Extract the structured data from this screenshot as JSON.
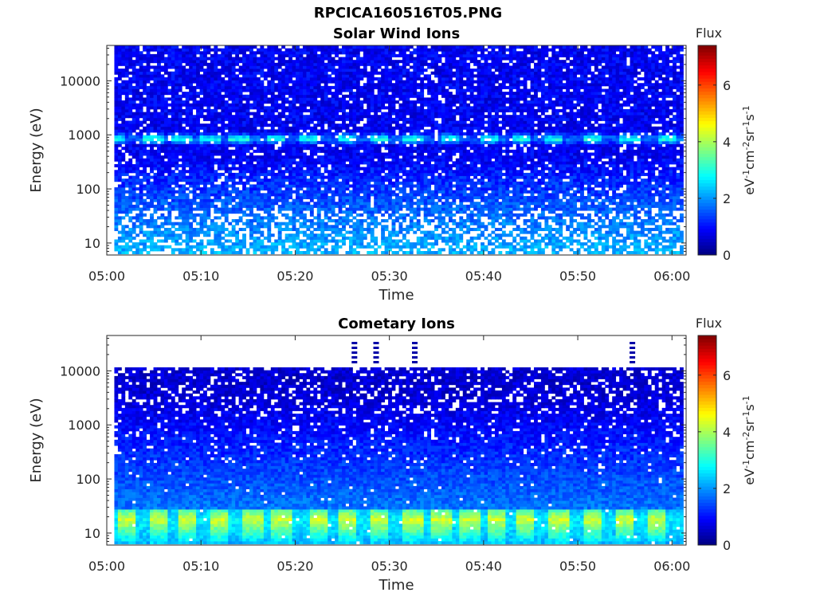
{
  "title": "RPCICA160516T05.PNG",
  "colorbar": {
    "label_title": "Flux",
    "unit_parts": [
      "eV",
      "-1",
      "cm",
      "-2",
      "sr",
      "-1",
      "s",
      "-1"
    ],
    "ticks": [
      "0",
      "2",
      "4",
      "6"
    ],
    "range": [
      0,
      7.4
    ],
    "colormap": "jet"
  },
  "chart_data": [
    {
      "type": "heatmap",
      "title": "Solar Wind Ions",
      "xlabel": "Time",
      "ylabel": "Energy (eV)",
      "x_tick_labels": [
        "05:00",
        "05:10",
        "05:20",
        "05:30",
        "05:40",
        "05:50",
        "06:00"
      ],
      "x_range_minutes": [
        0,
        61.5
      ],
      "y_scale": "log",
      "y_tick_labels": [
        "10",
        "100",
        "1000",
        "10000"
      ],
      "y_tick_values": [
        10,
        100,
        1000,
        10000
      ],
      "y_range": [
        6,
        45000
      ],
      "features": {
        "peak_energy_eV": 850,
        "peak_flux": 3.3,
        "peak_time_minutes": [
          1.0,
          5.0,
          8.0,
          11.0,
          14.0,
          18.0,
          21.5,
          25.5,
          29.0,
          32.5,
          36.5,
          40.5,
          44.0,
          47.5,
          51.5,
          55.5,
          59.5
        ],
        "background_flux": 0.8
      }
    },
    {
      "type": "heatmap",
      "title": "Cometary Ions",
      "xlabel": "Time",
      "ylabel": "Energy (eV)",
      "x_tick_labels": [
        "05:00",
        "05:10",
        "05:20",
        "05:30",
        "05:40",
        "05:50",
        "06:00"
      ],
      "x_range_minutes": [
        0,
        61.5
      ],
      "y_scale": "log",
      "y_tick_labels": [
        "10",
        "100",
        "1000",
        "10000"
      ],
      "y_tick_values": [
        10,
        100,
        1000,
        10000
      ],
      "y_range": [
        6,
        45000
      ],
      "features": {
        "peak_energy_eV": 18,
        "peak_flux": 4.8,
        "peak_time_minutes": [
          2.0,
          5.5,
          8.5,
          12.0,
          15.5,
          18.5,
          22.5,
          25.5,
          29.0,
          32.5,
          35.5,
          38.5,
          41.5,
          44.5,
          48.0,
          51.5,
          55.0,
          58.5
        ],
        "upper_cutoff_eV": 11000,
        "background_flux": 0.6
      }
    }
  ]
}
